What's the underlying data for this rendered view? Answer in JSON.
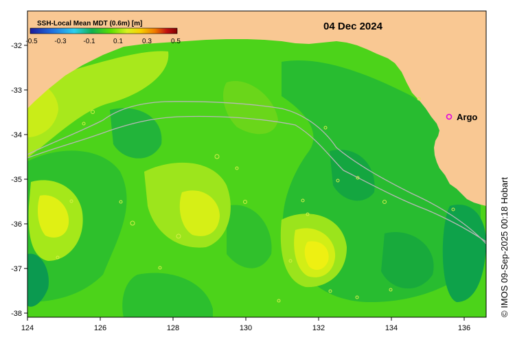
{
  "map": {
    "date": "04 Dec 2024",
    "credit": "© IMOS 09-Sep-2025 00:18 Hobart",
    "lon_range": [
      124,
      136.6
    ],
    "lat_range": [
      -38.2,
      -31.4
    ],
    "x_ticks": [
      "124",
      "126",
      "128",
      "130",
      "132",
      "134",
      "136"
    ],
    "y_ticks": [
      "-32",
      "-33",
      "-34",
      "-35",
      "-36",
      "-37",
      "-38"
    ],
    "land_color": "#f9c893",
    "marker_label": "Argo",
    "marker_color": "#e000e0"
  },
  "colorbar": {
    "title": "SSH-Local Mean MDT (0.6m) [m]",
    "labels": [
      "-0.5",
      "-0.3",
      "-0.1",
      "0.1",
      "0.3",
      "0.5"
    ],
    "colors": [
      "#1b1b9a",
      "#1f6fe0",
      "#2bd0f0",
      "#10b050",
      "#5ee000",
      "#d8f020",
      "#f8d000",
      "#f07800",
      "#c01010",
      "#800000"
    ]
  }
}
